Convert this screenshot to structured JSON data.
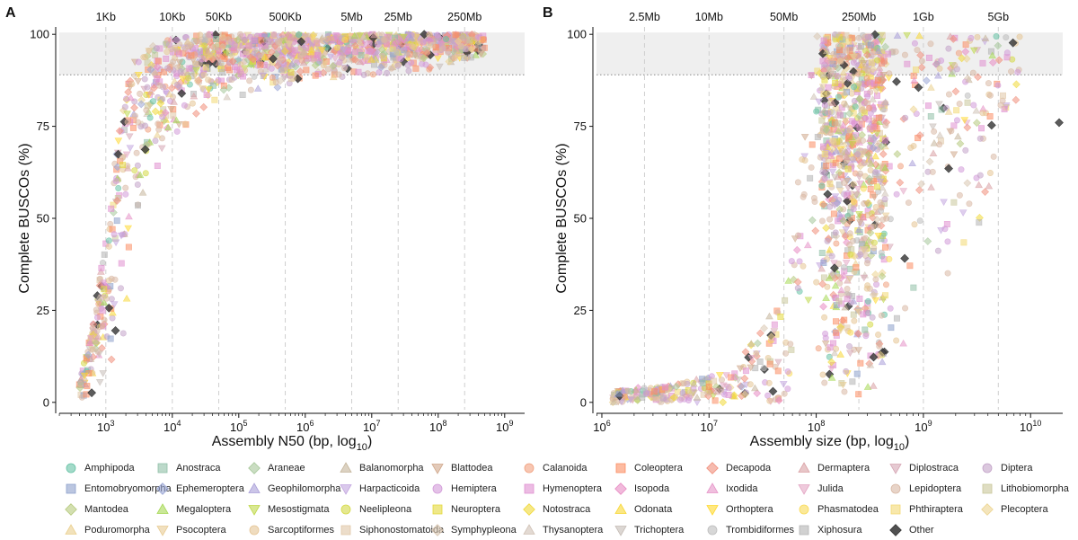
{
  "panels": [
    {
      "letter": "A",
      "chart_data": {
        "type": "scatter",
        "xscale": "log10",
        "xlabel_text": "Assembly N50 (bp, log",
        "xlabel_sub": "10",
        "xlabel_close": ")",
        "ylabel": "Complete BUSCOs (%)",
        "xlim_log10": [
          2.3,
          9.3
        ],
        "ylim": [
          -2,
          102
        ],
        "yticks": [
          0,
          25,
          50,
          75,
          100
        ],
        "xticks_bottom": [
          {
            "exp": 3,
            "base": "10",
            "sup": "3"
          },
          {
            "exp": 4,
            "base": "10",
            "sup": "4"
          },
          {
            "exp": 5,
            "base": "10",
            "sup": "5"
          },
          {
            "exp": 6,
            "base": "10",
            "sup": "6"
          },
          {
            "exp": 7,
            "base": "10",
            "sup": "7"
          },
          {
            "exp": 8,
            "base": "10",
            "sup": "8"
          },
          {
            "exp": 9,
            "base": "10",
            "sup": "9"
          }
        ],
        "top_refs": [
          {
            "label": "1Kb",
            "value": 1000
          },
          {
            "label": "10Kb",
            "value": 10000
          },
          {
            "label": "50Kb",
            "value": 50000
          },
          {
            "label": "500Kb",
            "value": 500000
          },
          {
            "label": "5Mb",
            "value": 5000000
          },
          {
            "label": "25Mb",
            "value": 25000000
          },
          {
            "label": "250Mb",
            "value": 250000000
          }
        ],
        "band": {
          "ymin": 89,
          "ymax": 100
        },
        "cloud": [
          {
            "x": 2.6,
            "y_lo": 0,
            "y_hi": 6
          },
          {
            "x": 2.8,
            "y_lo": 0,
            "y_hi": 20
          },
          {
            "x": 3.0,
            "y_lo": 0,
            "y_hi": 45
          },
          {
            "x": 3.2,
            "y_lo": 5,
            "y_hi": 75
          },
          {
            "x": 3.4,
            "y_lo": 30,
            "y_hi": 92
          },
          {
            "x": 3.7,
            "y_lo": 55,
            "y_hi": 97
          },
          {
            "x": 4.0,
            "y_lo": 70,
            "y_hi": 99
          },
          {
            "x": 4.5,
            "y_lo": 78,
            "y_hi": 100
          },
          {
            "x": 5.0,
            "y_lo": 82,
            "y_hi": 100
          },
          {
            "x": 6.0,
            "y_lo": 86,
            "y_hi": 100
          },
          {
            "x": 7.0,
            "y_lo": 88,
            "y_hi": 100
          },
          {
            "x": 8.0,
            "y_lo": 90,
            "y_hi": 100
          },
          {
            "x": 8.7,
            "y_lo": 93,
            "y_hi": 100
          }
        ]
      }
    },
    {
      "letter": "B",
      "chart_data": {
        "type": "scatter",
        "xscale": "log10",
        "xlabel_text": "Assembly size (bp, log",
        "xlabel_sub": "10",
        "xlabel_close": ")",
        "ylabel": "Complete BUSCOs (%)",
        "xlim_log10": [
          5.95,
          10.3
        ],
        "ylim": [
          -2,
          102
        ],
        "yticks": [
          0,
          25,
          50,
          75,
          100
        ],
        "xticks_bottom": [
          {
            "exp": 6,
            "base": "10",
            "sup": "6"
          },
          {
            "exp": 7,
            "base": "10",
            "sup": "7"
          },
          {
            "exp": 8,
            "base": "10",
            "sup": "8"
          },
          {
            "exp": 9,
            "base": "10",
            "sup": "9"
          },
          {
            "exp": 10,
            "base": "10",
            "sup": "10"
          }
        ],
        "top_refs": [
          {
            "label": "2.5Mb",
            "value": 2500000
          },
          {
            "label": "10Mb",
            "value": 10000000
          },
          {
            "label": "50Mb",
            "value": 50000000
          },
          {
            "label": "250Mb",
            "value": 250000000
          },
          {
            "label": "1Gb",
            "value": 1000000000
          },
          {
            "label": "5Gb",
            "value": 5000000000
          }
        ],
        "band": {
          "ymin": 89,
          "ymax": 100
        },
        "cloud": [
          {
            "x": 6.1,
            "y_lo": 0,
            "y_hi": 3
          },
          {
            "x": 6.6,
            "y_lo": 0,
            "y_hi": 5
          },
          {
            "x": 7.2,
            "y_lo": 0,
            "y_hi": 8
          },
          {
            "x": 7.7,
            "y_lo": 0,
            "y_hi": 30
          },
          {
            "x": 8.0,
            "y_lo": 5,
            "y_hi": 100
          },
          {
            "x": 8.3,
            "y_lo": 0,
            "y_hi": 100
          },
          {
            "x": 8.6,
            "y_lo": 0,
            "y_hi": 100
          },
          {
            "x": 8.9,
            "y_lo": 10,
            "y_hi": 100
          },
          {
            "x": 9.2,
            "y_lo": 25,
            "y_hi": 100
          },
          {
            "x": 9.5,
            "y_lo": 40,
            "y_hi": 100
          },
          {
            "x": 9.9,
            "y_lo": 80,
            "y_hi": 100
          }
        ],
        "outliers": [
          {
            "x": 10.3,
            "y": 76
          }
        ]
      }
    }
  ],
  "legend": {
    "columns": 8,
    "items": [
      {
        "label": "Amphipoda",
        "color": "#66c2a5",
        "shape": "circle"
      },
      {
        "label": "Anostraca",
        "color": "#8fbfa6",
        "shape": "square"
      },
      {
        "label": "Araneae",
        "color": "#a6c79a",
        "shape": "diamond"
      },
      {
        "label": "Balanomorpha",
        "color": "#c4b49a",
        "shape": "triangle"
      },
      {
        "label": "Blattodea",
        "color": "#d0a78a",
        "shape": "triangle-down"
      },
      {
        "label": "Calanoida",
        "color": "#f1a07e",
        "shape": "circle"
      },
      {
        "label": "Coleoptera",
        "color": "#fc8d62",
        "shape": "square"
      },
      {
        "label": "Decapoda",
        "color": "#f08e7a",
        "shape": "diamond"
      },
      {
        "label": "Dermaptera",
        "color": "#d9a0a4",
        "shape": "triangle"
      },
      {
        "label": "Diplostraca",
        "color": "#d6a6b4",
        "shape": "triangle-down"
      },
      {
        "label": "Diptera",
        "color": "#c3a3c8",
        "shape": "circle"
      },
      {
        "label": "Entomobryomorpha",
        "color": "#8da0cb",
        "shape": "square"
      },
      {
        "label": "Ephemeroptera",
        "color": "#9aa6d6",
        "shape": "diamond"
      },
      {
        "label": "Geophilomorpha",
        "color": "#a99fd8",
        "shape": "triangle"
      },
      {
        "label": "Harpacticoida",
        "color": "#c2a5df",
        "shape": "triangle-down"
      },
      {
        "label": "Hemiptera",
        "color": "#d29ad8",
        "shape": "circle"
      },
      {
        "label": "Hymenoptera",
        "color": "#e08fd0",
        "shape": "square"
      },
      {
        "label": "Isopoda",
        "color": "#e78ac3",
        "shape": "diamond"
      },
      {
        "label": "Ixodida",
        "color": "#e694c8",
        "shape": "triangle"
      },
      {
        "label": "Julida",
        "color": "#e4a6c4",
        "shape": "triangle-down"
      },
      {
        "label": "Lepidoptera",
        "color": "#d8b8a4",
        "shape": "circle"
      },
      {
        "label": "Lithobiomorpha",
        "color": "#c9c79a",
        "shape": "square"
      },
      {
        "label": "Mantodea",
        "color": "#b5c97c",
        "shape": "diamond"
      },
      {
        "label": "Megaloptera",
        "color": "#a6d854",
        "shape": "triangle"
      },
      {
        "label": "Mesostigmata",
        "color": "#bfd84a",
        "shape": "triangle-down"
      },
      {
        "label": "Neelipleona",
        "color": "#d4d944",
        "shape": "circle"
      },
      {
        "label": "Neuroptera",
        "color": "#e4d93a",
        "shape": "square"
      },
      {
        "label": "Notostraca",
        "color": "#f0d836",
        "shape": "diamond"
      },
      {
        "label": "Odonata",
        "color": "#f8d734",
        "shape": "triangle"
      },
      {
        "label": "Orthoptera",
        "color": "#ffd92f",
        "shape": "triangle-down"
      },
      {
        "label": "Phasmatodea",
        "color": "#f9da55",
        "shape": "circle"
      },
      {
        "label": "Phthiraptera",
        "color": "#f3d873",
        "shape": "square"
      },
      {
        "label": "Plecoptera",
        "color": "#ecd48f",
        "shape": "diamond"
      },
      {
        "label": "Poduromorpha",
        "color": "#eacf8e",
        "shape": "triangle"
      },
      {
        "label": "Psocoptera",
        "color": "#e8cc94",
        "shape": "triangle-down"
      },
      {
        "label": "Sarcoptiformes",
        "color": "#e5c494",
        "shape": "circle"
      },
      {
        "label": "Siphonostomatoida",
        "color": "#e0c7a6",
        "shape": "square"
      },
      {
        "label": "Symphypleona",
        "color": "#d9c6b0",
        "shape": "diamond"
      },
      {
        "label": "Thysanoptera",
        "color": "#d0c2b6",
        "shape": "triangle"
      },
      {
        "label": "Trichoptera",
        "color": "#c5bcb6",
        "shape": "triangle-down"
      },
      {
        "label": "Trombidiformes",
        "color": "#bcbcbc",
        "shape": "circle"
      },
      {
        "label": "Xiphosura",
        "color": "#b3b3b3",
        "shape": "square"
      },
      {
        "label": "Other",
        "color": "#333333",
        "shape": "diamond"
      }
    ]
  }
}
